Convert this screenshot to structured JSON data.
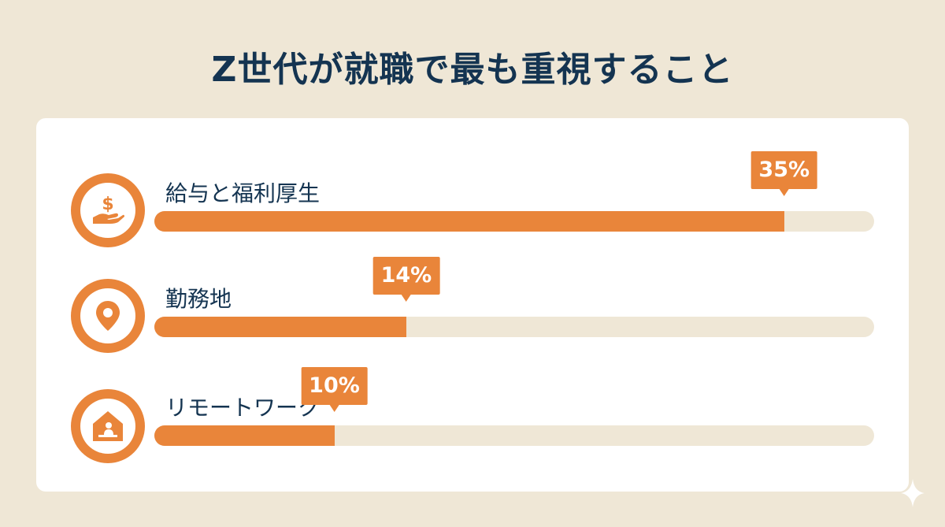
{
  "title": "Z世代が就職で最も重視すること",
  "colors": {
    "accent": "#e9853a",
    "track": "#efe7d6",
    "text": "#143451",
    "background": "#efe7d6"
  },
  "chart_data": {
    "type": "bar",
    "title": "Z世代が就職で最も重視すること",
    "categories": [
      "給与と福利厚生",
      "勤務地",
      "リモートワーク"
    ],
    "values": [
      35,
      14,
      10
    ],
    "value_labels": [
      "35%",
      "14%",
      "10%"
    ],
    "icons": [
      "money-hand-icon",
      "location-pin-icon",
      "home-office-icon"
    ],
    "xlim": [
      0,
      40
    ]
  }
}
